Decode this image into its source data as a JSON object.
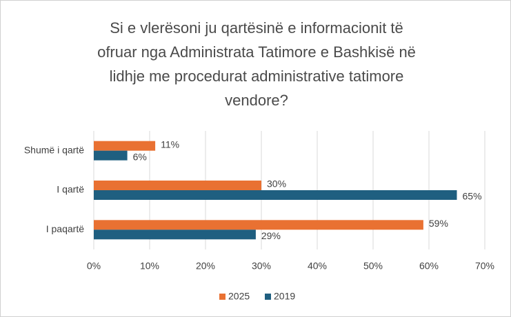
{
  "chart_data": {
    "type": "bar",
    "orientation": "horizontal",
    "title": [
      "Si e vlerësoni ju qartësinë e informacionit të",
      "ofruar nga Administrata Tatimore e Bashkisë në",
      "lidhje me procedurat administrative tatimore",
      "vendore?"
    ],
    "categories": [
      "Shumë i qartë",
      "I qartë",
      "I paqartë"
    ],
    "series": [
      {
        "name": "2025",
        "color": "#e97132",
        "values": [
          11,
          30,
          59
        ],
        "value_labels": [
          "11%",
          "30%",
          "59%"
        ]
      },
      {
        "name": "2019",
        "color": "#1f5f80",
        "values": [
          6,
          65,
          29
        ],
        "value_labels": [
          "6%",
          "65%",
          "29%"
        ]
      }
    ],
    "xlim": [
      0,
      70
    ],
    "xticks": [
      {
        "value": 0,
        "label": "0%"
      },
      {
        "value": 10,
        "label": "10%"
      },
      {
        "value": 20,
        "label": "20%"
      },
      {
        "value": 30,
        "label": "30%"
      },
      {
        "value": 40,
        "label": "40%"
      },
      {
        "value": 50,
        "label": "50%"
      },
      {
        "value": 60,
        "label": "60%"
      },
      {
        "value": 70,
        "label": "70%"
      }
    ],
    "grid": true,
    "legend": "bottom"
  }
}
